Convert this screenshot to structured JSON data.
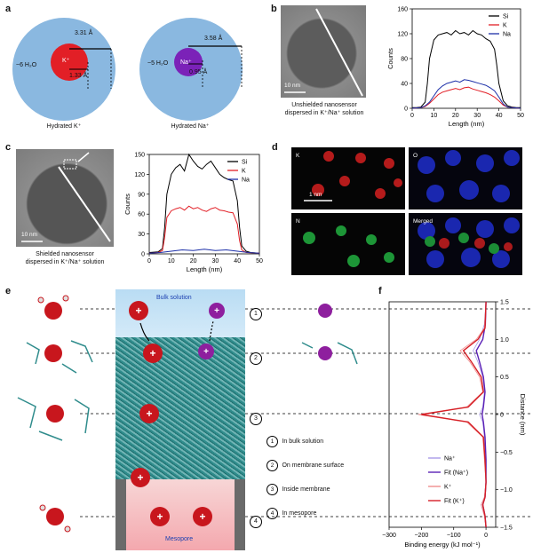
{
  "panels": {
    "a": {
      "letter": "a",
      "left": {
        "caption": "Hydrated K⁺",
        "water": "~6 H₂O",
        "ion": "K⁺",
        "outer_radius": "3.31 Å",
        "inner_radius": "1.33 Å",
        "colors": {
          "shell": "#8ab8e0",
          "ion": "#e21f26"
        }
      },
      "right": {
        "caption": "Hydrated Na⁺",
        "water": "~5 H₂O",
        "ion": "Na⁺",
        "outer_radius": "3.58 Å",
        "inner_radius": "0.95 Å",
        "colors": {
          "shell": "#8ab8e0",
          "ion": "#7b22b8"
        }
      }
    },
    "b": {
      "letter": "b",
      "scale_bar": "10 nm",
      "caption_line1": "Unshielded nanosensor",
      "caption_line2": "dispersed in K⁺/Na⁺ solution"
    },
    "c": {
      "letter": "c",
      "scale_bar": "10 nm",
      "caption_line1": "Shielded nanosensor",
      "caption_line2": "dispersed in K⁺/Na⁺ solution"
    },
    "d": {
      "letter": "d",
      "tiles": [
        "K",
        "O",
        "N",
        "Merged"
      ],
      "scale_bar": "1 nm"
    },
    "e": {
      "letter": "e",
      "bulk_label": "Bulk solution",
      "mesopore_label": "Mesopore",
      "steps": [
        {
          "num": "1",
          "text": "In bulk solution"
        },
        {
          "num": "2",
          "text": "On membrane surface"
        },
        {
          "num": "3",
          "text": "Inside membrane"
        },
        {
          "num": "4",
          "text": "In mesopore"
        }
      ]
    },
    "f": {
      "letter": "f"
    }
  },
  "chart_data": [
    {
      "id": "b",
      "type": "line",
      "xlabel": "Length (nm)",
      "ylabel": "Counts",
      "xlim": [
        0,
        50
      ],
      "ylim": [
        0,
        160
      ],
      "xticks": [
        0,
        10,
        20,
        30,
        40,
        50
      ],
      "yticks": [
        0,
        40,
        80,
        120,
        160
      ],
      "legend_position": "top-right",
      "series": [
        {
          "name": "Si",
          "color": "#000000",
          "x": [
            0,
            2,
            4,
            6,
            7,
            8,
            10,
            12,
            14,
            16,
            18,
            20,
            22,
            24,
            26,
            28,
            30,
            32,
            34,
            36,
            38,
            39,
            40,
            42,
            44,
            46,
            48,
            50
          ],
          "y": [
            1,
            1,
            2,
            10,
            40,
            80,
            110,
            118,
            120,
            122,
            118,
            125,
            120,
            122,
            118,
            125,
            120,
            118,
            112,
            108,
            95,
            70,
            40,
            12,
            4,
            2,
            1,
            1
          ]
        },
        {
          "name": "K",
          "color": "#e21f26",
          "x": [
            0,
            4,
            6,
            8,
            10,
            12,
            14,
            16,
            18,
            20,
            22,
            24,
            26,
            28,
            30,
            32,
            34,
            36,
            38,
            40,
            42,
            44,
            46,
            50
          ],
          "y": [
            0,
            1,
            3,
            8,
            15,
            22,
            26,
            28,
            30,
            32,
            30,
            33,
            34,
            31,
            29,
            27,
            25,
            22,
            18,
            12,
            5,
            2,
            1,
            0
          ]
        },
        {
          "name": "Na",
          "color": "#1c2fa8",
          "x": [
            0,
            4,
            6,
            8,
            10,
            12,
            14,
            16,
            18,
            20,
            22,
            24,
            26,
            28,
            30,
            32,
            34,
            36,
            38,
            40,
            42,
            44,
            46,
            50
          ],
          "y": [
            0,
            1,
            4,
            10,
            20,
            30,
            36,
            40,
            42,
            44,
            42,
            46,
            45,
            43,
            41,
            39,
            37,
            33,
            28,
            18,
            7,
            2,
            1,
            0
          ]
        }
      ]
    },
    {
      "id": "c",
      "type": "line",
      "xlabel": "Length (nm)",
      "ylabel": "Counts",
      "xlim": [
        0,
        50
      ],
      "ylim": [
        0,
        150
      ],
      "xticks": [
        0,
        10,
        20,
        30,
        40,
        50
      ],
      "yticks": [
        0,
        30,
        60,
        90,
        120,
        150
      ],
      "legend_position": "top-right",
      "series": [
        {
          "name": "Si",
          "color": "#000000",
          "x": [
            0,
            4,
            6,
            7,
            8,
            10,
            12,
            14,
            16,
            18,
            20,
            22,
            24,
            26,
            28,
            30,
            32,
            34,
            36,
            38,
            40,
            41,
            42,
            44,
            46,
            50
          ],
          "y": [
            2,
            3,
            8,
            40,
            90,
            120,
            130,
            135,
            125,
            150,
            140,
            132,
            128,
            135,
            140,
            130,
            120,
            115,
            112,
            110,
            80,
            40,
            12,
            4,
            2,
            1
          ]
        },
        {
          "name": "K",
          "color": "#e21f26",
          "x": [
            0,
            4,
            6,
            7,
            8,
            10,
            12,
            14,
            16,
            18,
            20,
            22,
            24,
            26,
            28,
            30,
            32,
            34,
            36,
            38,
            40,
            41,
            42,
            44,
            50
          ],
          "y": [
            1,
            2,
            5,
            25,
            55,
            65,
            68,
            70,
            66,
            72,
            68,
            70,
            66,
            64,
            68,
            70,
            66,
            65,
            63,
            62,
            45,
            20,
            6,
            2,
            1
          ]
        },
        {
          "name": "Na",
          "color": "#1c2fa8",
          "x": [
            0,
            5,
            10,
            15,
            20,
            25,
            30,
            35,
            40,
            45,
            50
          ],
          "y": [
            1,
            2,
            4,
            6,
            5,
            7,
            5,
            6,
            4,
            2,
            1
          ]
        }
      ]
    },
    {
      "id": "f",
      "type": "line",
      "xlabel": "Binding energy (kJ mol⁻¹)",
      "ylabel": "Distance (nm)",
      "xlim": [
        -300,
        30
      ],
      "ylim": [
        -1.5,
        1.5
      ],
      "xticks": [
        -300,
        -200,
        -100,
        0
      ],
      "yticks": [
        -1.5,
        -1.0,
        -0.5,
        0,
        0.5,
        1.0,
        1.5
      ],
      "legend_position": "lower-right",
      "series": [
        {
          "name": "Na⁺",
          "color": "#a99be8",
          "x": [
            0,
            -5,
            -20,
            -40,
            -25,
            -10,
            -5,
            -10,
            -20,
            -10,
            -5,
            0,
            0,
            -5,
            -15,
            -5,
            0
          ],
          "y": [
            1.5,
            1.2,
            1.0,
            0.85,
            0.7,
            0.5,
            0.3,
            0.1,
            0,
            -0.1,
            -0.3,
            -0.6,
            -0.9,
            -1.1,
            -1.2,
            -1.35,
            -1.5
          ]
        },
        {
          "name": "Fit (Na⁺)",
          "color": "#5b21b6",
          "x": [
            0,
            -2,
            -10,
            -30,
            -20,
            -8,
            -3,
            -8,
            -12,
            -8,
            -3,
            0,
            0,
            -3,
            -10,
            -3,
            0
          ],
          "y": [
            1.5,
            1.2,
            1.0,
            0.85,
            0.7,
            0.5,
            0.3,
            0.1,
            0,
            -0.1,
            -0.3,
            -0.6,
            -0.9,
            -1.1,
            -1.2,
            -1.35,
            -1.5
          ]
        },
        {
          "name": "K⁺",
          "color": "#ef8d8d",
          "x": [
            0,
            -5,
            -30,
            -80,
            -50,
            -20,
            -10,
            -60,
            -210,
            -60,
            -10,
            -5,
            0,
            -5,
            -15,
            -5,
            0
          ],
          "y": [
            1.5,
            1.15,
            1.0,
            0.85,
            0.7,
            0.5,
            0.3,
            0.1,
            0,
            -0.1,
            -0.3,
            -0.6,
            -0.9,
            -1.1,
            -1.2,
            -1.35,
            -1.5
          ]
        },
        {
          "name": "Fit (K⁺)",
          "color": "#d61f26",
          "x": [
            0,
            -3,
            -25,
            -70,
            -45,
            -15,
            -8,
            -55,
            -200,
            -55,
            -8,
            -3,
            0,
            -3,
            -10,
            -3,
            0
          ],
          "y": [
            1.5,
            1.15,
            1.0,
            0.85,
            0.7,
            0.5,
            0.3,
            0.1,
            0,
            -0.1,
            -0.3,
            -0.6,
            -0.9,
            -1.1,
            -1.2,
            -1.35,
            -1.5
          ]
        }
      ]
    }
  ]
}
